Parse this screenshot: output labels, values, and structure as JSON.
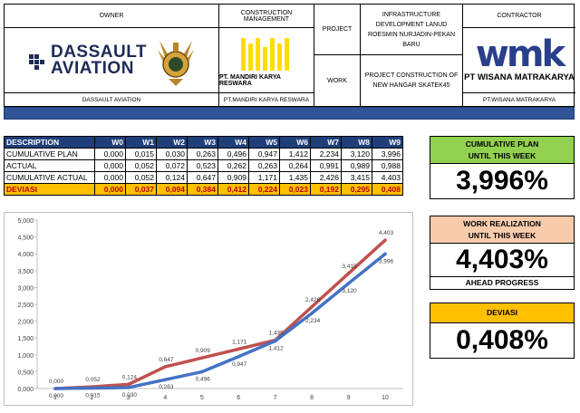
{
  "header": {
    "owner": {
      "title": "OWNER",
      "logo_text": [
        "DASSAULT",
        "AVIATION"
      ],
      "footer": "DASSAULT AVIATION"
    },
    "cm": {
      "title": "CONSTRUCTION MANAGEMENT",
      "company": "PT. MANDIRI KARYA RESWARA",
      "footer": "PT.MANDIRI KARYA RESWARA"
    },
    "project_label": "PROJECT",
    "work_label": "WORK",
    "project_name": "INFRASTRUCTURE DEVELOPMENT LANUD ROESMIN NURJADIN-PEKAN BARU",
    "work_name": "PROJECT CONSTRUCTION OF NEW HANGAR SKATEK45",
    "contractor": {
      "title": "CONTRACTOR",
      "logo_text": "wmk",
      "name": "PT WISANA MATRAKARYA",
      "footer": "PT.WISANA MATRAKARYA"
    }
  },
  "table": {
    "columns": [
      "DESCRIPTION",
      "W0",
      "W1",
      "W2",
      "W3",
      "W4",
      "W5",
      "W6",
      "W7",
      "W8",
      "W9"
    ],
    "rows": [
      {
        "label": "CUMULATIVE PLAN",
        "values": [
          "0,000",
          "0,015",
          "0,030",
          "0,263",
          "0,496",
          "0,947",
          "1,412",
          "2,234",
          "3,120",
          "3,996"
        ]
      },
      {
        "label": "ACTUAL",
        "values": [
          "0,000",
          "0,052",
          "0,072",
          "0,523",
          "0,262",
          "0,263",
          "0,264",
          "0,991",
          "0,989",
          "0,988"
        ]
      },
      {
        "label": "CUMULATIVE ACTUAL",
        "values": [
          "0,000",
          "0,052",
          "0,124",
          "0,647",
          "0,909",
          "1,171",
          "1,435",
          "2,426",
          "3,415",
          "4,403"
        ]
      },
      {
        "label": "DEVIASI",
        "values": [
          "0,000",
          "0,037",
          "0,094",
          "0,384",
          "0,412",
          "0,224",
          "0,023",
          "0,192",
          "0,295",
          "0,408"
        ]
      }
    ]
  },
  "panels": {
    "plan": {
      "title1": "CUMULATIVE PLAN",
      "title2": "UNTIL THIS WEEK",
      "value": "3,996%",
      "color": "#92d050"
    },
    "realization": {
      "title1": "WORK REALIZATION",
      "title2": "UNTIL THIS WEEK",
      "value": "4,403%",
      "sub": "AHEAD PROGRESS",
      "color": "#f8cbad"
    },
    "deviasi": {
      "title1": "DEVIASI",
      "value": "0,408%",
      "color": "#ffc000"
    }
  },
  "chart_data": {
    "type": "line",
    "categories": [
      "1",
      "2",
      "3",
      "4",
      "5",
      "6",
      "7",
      "8",
      "9",
      "10"
    ],
    "ylim": [
      0,
      5
    ],
    "yticks": [
      "0,000",
      "0,500",
      "1,000",
      "1,500",
      "2,000",
      "2,500",
      "3,000",
      "3,500",
      "4,000",
      "4,500",
      "5,000"
    ],
    "series": [
      {
        "color": "#4472c4",
        "values": [
          0.0,
          0.015,
          0.03,
          0.263,
          0.496,
          0.947,
          1.412,
          2.234,
          3.12,
          3.996
        ],
        "labels": [
          "0,000",
          "0,015",
          "0,030",
          "0,263",
          "0,496",
          "0,947",
          "1,412",
          "2,234",
          "3,120",
          "3,996"
        ]
      },
      {
        "color": "#c0504d",
        "values": [
          0.0,
          0.052,
          0.124,
          0.647,
          0.909,
          1.171,
          1.435,
          2.426,
          3.415,
          4.403
        ],
        "labels": [
          "0,000",
          "0,052",
          "0,124",
          "0,647",
          "0,909",
          "1,171",
          "1,435",
          "2,426",
          "3,415",
          "4,403"
        ]
      }
    ],
    "grid": false,
    "legend": "none"
  }
}
